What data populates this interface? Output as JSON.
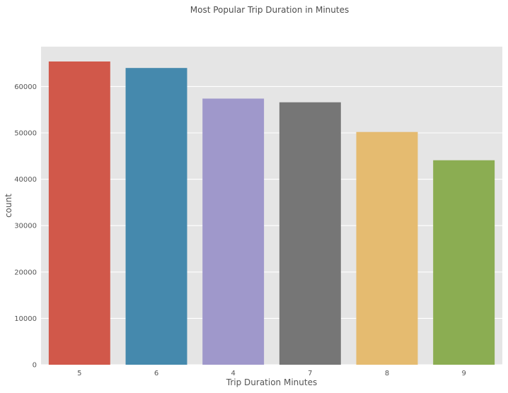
{
  "chart_data": {
    "type": "bar",
    "title": "Most Popular Trip Duration in Minutes",
    "xlabel": "Trip Duration Minutes",
    "ylabel": "count",
    "categories": [
      "5",
      "6",
      "4",
      "7",
      "8",
      "9"
    ],
    "values": [
      65400,
      64000,
      57400,
      56600,
      50200,
      44100
    ],
    "colors": [
      "#d1584a",
      "#4589ad",
      "#9f98cb",
      "#767676",
      "#e5bb70",
      "#8bad52"
    ],
    "yticks": [
      0,
      10000,
      20000,
      30000,
      40000,
      50000,
      60000
    ],
    "ylim": [
      0,
      68600
    ],
    "grid": true,
    "background": "#e5e5e5"
  }
}
